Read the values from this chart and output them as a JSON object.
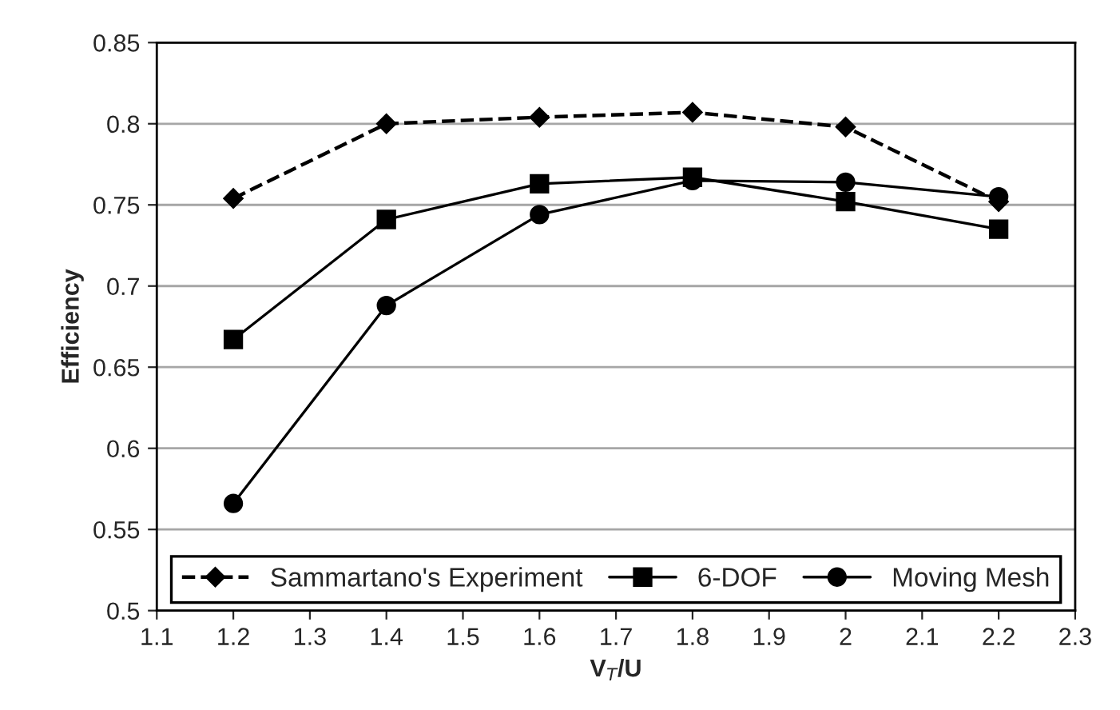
{
  "chart_data": {
    "type": "line",
    "xlabel": "V$_{T}$/U",
    "ylabel": "Efficiency",
    "x": [
      1.2,
      1.4,
      1.6,
      1.8,
      2.0,
      2.2
    ],
    "series": [
      {
        "name": "Sammartano's Experiment",
        "color": "#000000",
        "marker": "diamond",
        "line_style": "dashed",
        "values": [
          0.754,
          0.8,
          0.804,
          0.807,
          0.798,
          0.752
        ]
      },
      {
        "name": "6-DOF",
        "color": "#000000",
        "marker": "square",
        "line_style": "solid",
        "values": [
          0.667,
          0.741,
          0.763,
          0.767,
          0.752,
          0.735
        ]
      },
      {
        "name": "Moving Mesh",
        "color": "#000000",
        "marker": "circle",
        "line_style": "solid",
        "values": [
          0.566,
          0.688,
          0.744,
          0.765,
          0.764,
          0.755
        ]
      }
    ],
    "xlim": [
      1.1,
      2.3
    ],
    "xticks": [
      1.1,
      1.2,
      1.3,
      1.4,
      1.5,
      1.6,
      1.7,
      1.8,
      1.9,
      2,
      2.1,
      2.2,
      2.3
    ],
    "ylim": [
      0.5,
      0.85
    ],
    "yticks": [
      0.5,
      0.55,
      0.6,
      0.65,
      0.7,
      0.75,
      0.8,
      0.85
    ],
    "grid": "y",
    "legend": "bottom"
  }
}
